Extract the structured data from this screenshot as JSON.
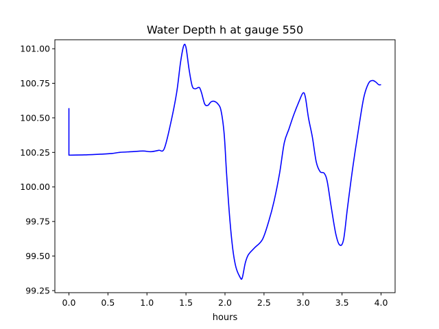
{
  "chart_data": {
    "type": "line",
    "title": "Water Depth h at gauge 550",
    "xlabel": "hours",
    "ylabel": "",
    "xlim": [
      -0.18,
      4.18
    ],
    "ylim": [
      99.235,
      101.065
    ],
    "grid": false,
    "legend": "none",
    "x_ticks": [
      0.0,
      0.5,
      1.0,
      1.5,
      2.0,
      2.5,
      3.0,
      3.5,
      4.0
    ],
    "x_tick_labels": [
      "0.0",
      "0.5",
      "1.0",
      "1.5",
      "2.0",
      "2.5",
      "3.0",
      "3.5",
      "4.0"
    ],
    "y_ticks": [
      99.25,
      99.5,
      99.75,
      100.0,
      100.25,
      100.5,
      100.75,
      101.0
    ],
    "y_tick_labels": [
      "99.25",
      "99.50",
      "99.75",
      "100.00",
      "100.25",
      "100.50",
      "100.75",
      "101.00"
    ],
    "series": [
      {
        "color": "#0000ff",
        "points": [
          [
            0.0,
            100.57
          ],
          [
            0.0,
            100.23
          ],
          [
            0.2,
            100.232
          ],
          [
            0.4,
            100.237
          ],
          [
            0.55,
            100.242
          ],
          [
            0.65,
            100.25
          ],
          [
            0.8,
            100.255
          ],
          [
            0.95,
            100.26
          ],
          [
            1.05,
            100.255
          ],
          [
            1.15,
            100.265
          ],
          [
            1.22,
            100.275
          ],
          [
            1.3,
            100.45
          ],
          [
            1.38,
            100.68
          ],
          [
            1.43,
            100.9
          ],
          [
            1.47,
            101.02
          ],
          [
            1.5,
            101.01
          ],
          [
            1.54,
            100.85
          ],
          [
            1.58,
            100.73
          ],
          [
            1.62,
            100.71
          ],
          [
            1.67,
            100.72
          ],
          [
            1.7,
            100.68
          ],
          [
            1.74,
            100.6
          ],
          [
            1.78,
            100.59
          ],
          [
            1.82,
            100.615
          ],
          [
            1.86,
            100.62
          ],
          [
            1.91,
            100.6
          ],
          [
            1.95,
            100.55
          ],
          [
            1.99,
            100.38
          ],
          [
            2.02,
            100.1
          ],
          [
            2.06,
            99.78
          ],
          [
            2.1,
            99.55
          ],
          [
            2.14,
            99.42
          ],
          [
            2.19,
            99.35
          ],
          [
            2.22,
            99.34
          ],
          [
            2.26,
            99.45
          ],
          [
            2.3,
            99.51
          ],
          [
            2.38,
            99.56
          ],
          [
            2.48,
            99.62
          ],
          [
            2.56,
            99.75
          ],
          [
            2.63,
            99.9
          ],
          [
            2.7,
            100.1
          ],
          [
            2.76,
            100.32
          ],
          [
            2.82,
            100.42
          ],
          [
            2.88,
            100.52
          ],
          [
            2.95,
            100.62
          ],
          [
            3.0,
            100.68
          ],
          [
            3.03,
            100.65
          ],
          [
            3.07,
            100.5
          ],
          [
            3.12,
            100.36
          ],
          [
            3.17,
            100.18
          ],
          [
            3.22,
            100.11
          ],
          [
            3.27,
            100.1
          ],
          [
            3.31,
            100.04
          ],
          [
            3.36,
            99.86
          ],
          [
            3.42,
            99.66
          ],
          [
            3.47,
            99.58
          ],
          [
            3.52,
            99.62
          ],
          [
            3.57,
            99.85
          ],
          [
            3.64,
            100.15
          ],
          [
            3.72,
            100.45
          ],
          [
            3.78,
            100.65
          ],
          [
            3.84,
            100.75
          ],
          [
            3.89,
            100.77
          ],
          [
            3.93,
            100.76
          ],
          [
            3.97,
            100.74
          ],
          [
            4.0,
            100.74
          ]
        ]
      }
    ]
  }
}
